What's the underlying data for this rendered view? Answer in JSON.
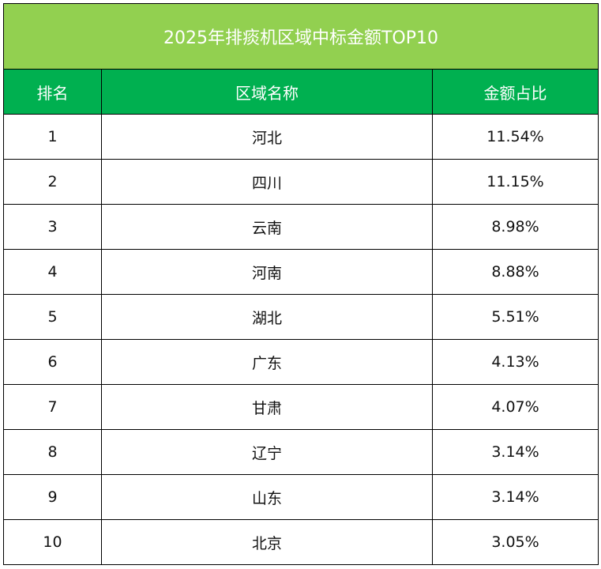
{
  "title": "2025年排痰机区域中标金额TOP10",
  "colors": {
    "title_bg": "#92d050",
    "header_bg": "#00b050",
    "header_text": "#ffffff",
    "border": "#000000"
  },
  "columns": {
    "rank": "排名",
    "region": "区域名称",
    "share": "金额占比"
  },
  "rows": [
    {
      "rank": "1",
      "region": "河北",
      "share": "11.54%"
    },
    {
      "rank": "2",
      "region": "四川",
      "share": "11.15%"
    },
    {
      "rank": "3",
      "region": "云南",
      "share": "8.98%"
    },
    {
      "rank": "4",
      "region": "河南",
      "share": "8.88%"
    },
    {
      "rank": "5",
      "region": "湖北",
      "share": "5.51%"
    },
    {
      "rank": "6",
      "region": "广东",
      "share": "4.13%"
    },
    {
      "rank": "7",
      "region": "甘肃",
      "share": "4.07%"
    },
    {
      "rank": "8",
      "region": "辽宁",
      "share": "3.14%"
    },
    {
      "rank": "9",
      "region": "山东",
      "share": "3.14%"
    },
    {
      "rank": "10",
      "region": "北京",
      "share": "3.05%"
    }
  ]
}
